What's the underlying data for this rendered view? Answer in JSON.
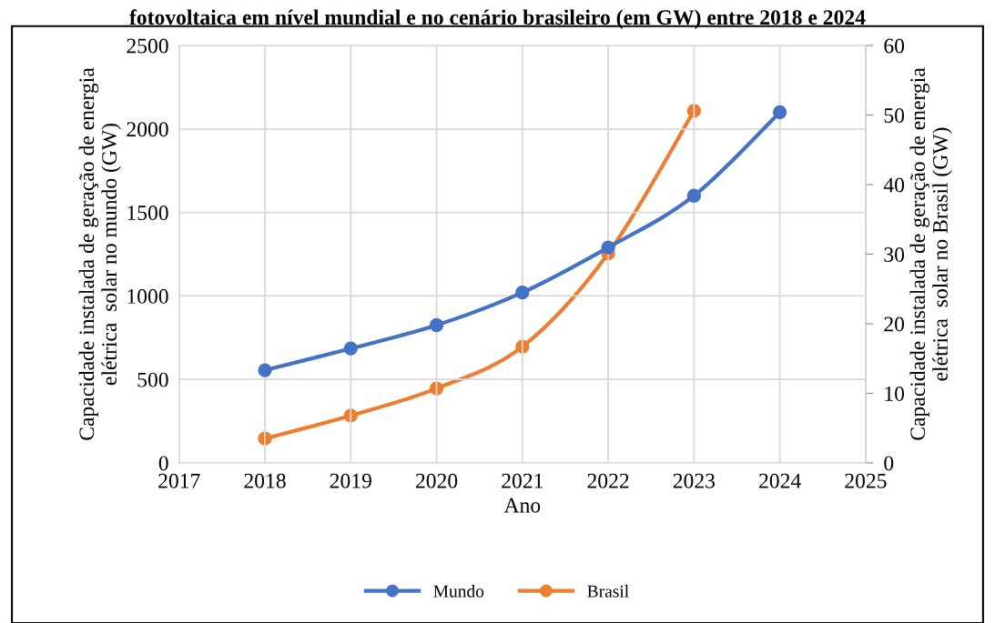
{
  "chart_data": {
    "type": "line",
    "title": "fotovoltaica em nível mundial e no cenário brasileiro (em GW) entre 2018 e 2024",
    "x": [
      2018,
      2019,
      2020,
      2021,
      2022,
      2023,
      2024
    ],
    "series": [
      {
        "name": "Mundo",
        "color": "#4472c4",
        "values": [
          555,
          685,
          825,
          1020,
          1290,
          1600,
          2100
        ]
      },
      {
        "name": "Brasil",
        "color": "#ed7d31",
        "axis": "y2",
        "values": [
          3.5,
          6.8,
          10.7,
          16.7,
          30.1,
          50.6,
          null
        ]
      }
    ],
    "xlabel": "Ano",
    "ylabel": "Capacidade instalada de geração de energia\nelétrica  solar no mundo (GW)",
    "y2label": "Capacidade instalada de geração de energia\nelétrica  solar no Brasil (GW)",
    "xlim": [
      2017,
      2025
    ],
    "xticks": [
      2017,
      2018,
      2019,
      2020,
      2021,
      2022,
      2023,
      2024,
      2025
    ],
    "ylim": [
      0,
      2500
    ],
    "yticks": [
      0,
      500,
      1000,
      1500,
      2000,
      2500
    ],
    "y2lim": [
      0,
      60
    ],
    "y2ticks": [
      0,
      10,
      20,
      30,
      40,
      50,
      60
    ],
    "grid": true,
    "legend": "bottom",
    "marker": "circle",
    "line_style": "solid"
  }
}
